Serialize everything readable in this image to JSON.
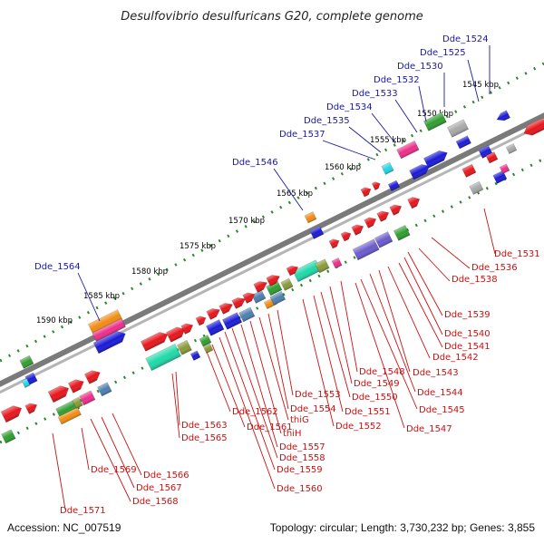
{
  "title": "Desulfovibrio desulfuricans G20, complete genome",
  "footer": {
    "accession": "Accession: NC_007519",
    "topology": "Topology: circular; Length: 3,730,232 bp; Genes: 3,855"
  },
  "scale_labels": [
    "1545 kbp",
    "1550 kbp",
    "1555 kbp",
    "1560 kbp",
    "1565 kbp",
    "1570 kbp",
    "1575 kbp",
    "1580 kbp",
    "1585 kbp",
    "1590 kbp"
  ],
  "top_labels": [
    "Dde_1524",
    "Dde_1525",
    "Dde_1530",
    "Dde_1532",
    "Dde_1533",
    "Dde_1534",
    "Dde_1535",
    "Dde_1537",
    "Dde_1546",
    "Dde_1564"
  ],
  "bottom_labels": [
    "Dde_1531",
    "Dde_1536",
    "Dde_1538",
    "Dde_1539",
    "Dde_1540",
    "Dde_1541",
    "Dde_1542",
    "Dde_1543",
    "Dde_1544",
    "Dde_1545",
    "Dde_1547",
    "Dde_1548",
    "Dde_1549",
    "Dde_1550",
    "Dde_1551",
    "Dde_1552",
    "Dde_1553",
    "Dde_1554",
    "thiG",
    "thiH",
    "Dde_1557",
    "Dde_1558",
    "Dde_1559",
    "Dde_1560",
    "Dde_1561",
    "Dde_1562",
    "Dde_1563",
    "Dde_1565",
    "Dde_1566",
    "Dde_1567",
    "Dde_1568",
    "Dde_1569",
    "Dde_1571"
  ],
  "colors": {
    "red": "#e8151b",
    "blue": "#1a1ad8",
    "green": "#2f9e2f",
    "orange": "#f28c12",
    "magenta": "#ee2d8a",
    "cyan": "#22d6e6",
    "teal": "#1fd9a9",
    "slate": "#4c7fb0",
    "olive": "#8a9a37",
    "gray": "#a8a8a8",
    "purple": "#6a5acd",
    "backbone": "#7a7a7a",
    "tick": "#2a8a2a",
    "label_top": "#1a1aa0",
    "label_bottom": "#cc1111"
  }
}
